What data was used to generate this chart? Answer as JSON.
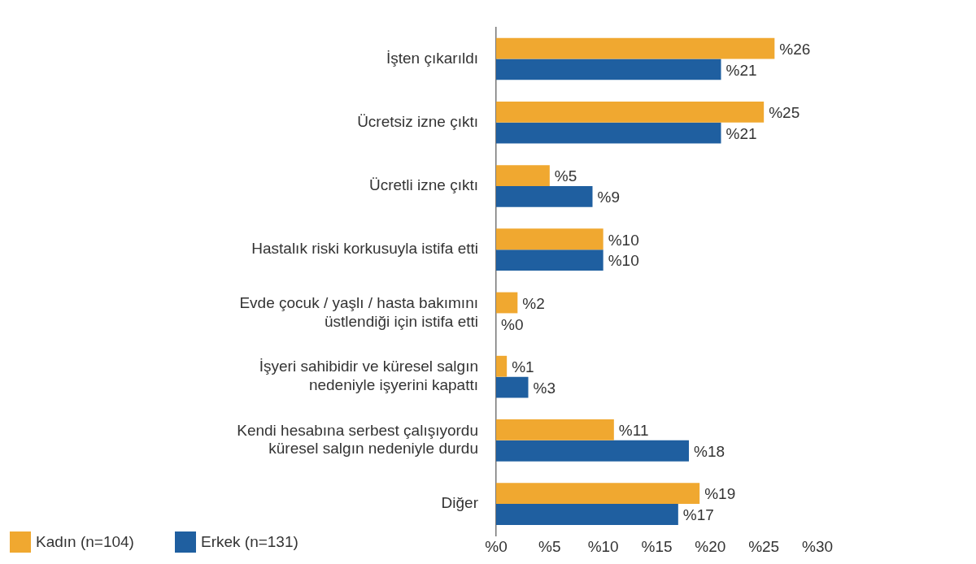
{
  "chart_data": {
    "type": "bar",
    "orientation": "horizontal",
    "categories": [
      "İşten çıkarıldı",
      "Ücretsiz izne çıktı",
      "Ücretli izne çıktı",
      "Hastalık riski korkusuyla istifa etti",
      "Evde çocuk / yaşlı / hasta bakımını\nüstlendiği için istifa etti",
      "İşyeri sahibidir ve küresel salgın\nnedeniyle işyerini kapattı",
      "Kendi hesabına serbest çalışıyordu\nküresel salgın nedeniyle durdu",
      "Diğer"
    ],
    "series": [
      {
        "name": "Kadın (n=104)",
        "color": "#f0a830",
        "values": [
          26,
          25,
          5,
          10,
          2,
          1,
          11,
          19
        ],
        "value_labels": [
          "%26",
          "%25",
          "%5",
          "%10",
          "%2",
          "%1",
          "%11",
          "%19"
        ]
      },
      {
        "name": "Erkek (n=131)",
        "color": "#1f5fa0",
        "values": [
          21,
          21,
          9,
          10,
          0,
          3,
          18,
          17
        ],
        "value_labels": [
          "%21",
          "%21",
          "%9",
          "%10",
          "%0",
          "%3",
          "%18",
          "%17"
        ]
      }
    ],
    "xlim": [
      0,
      30
    ],
    "xticks": [
      {
        "value": 0,
        "label": "%0"
      },
      {
        "value": 5,
        "label": "%5"
      },
      {
        "value": 10,
        "label": "%10"
      },
      {
        "value": 15,
        "label": "%15"
      },
      {
        "value": 20,
        "label": "%20"
      },
      {
        "value": 25,
        "label": "%25"
      },
      {
        "value": 30,
        "label": "%30"
      }
    ],
    "grid": false,
    "legend": "bottom left"
  }
}
